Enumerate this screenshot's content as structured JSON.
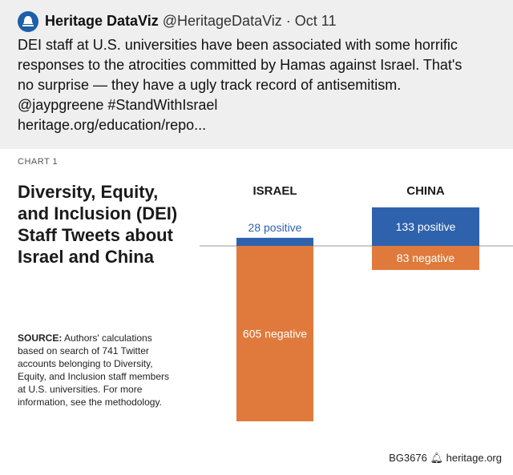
{
  "tweet": {
    "name": "Heritage DataViz",
    "handle": "@HeritageDataViz",
    "separator": "·",
    "date": "Oct 11",
    "lines": [
      "DEI staff at U.S. universities have been associated with some horrific",
      "responses to the atrocities committed by Hamas against Israel. That's",
      "no surprise — they have a ugly track record of antisemitism.",
      "@jaypgreene #StandWithIsrael",
      "heritage.org/education/repo..."
    ]
  },
  "chart_header": {
    "label": "CHART 1",
    "title": "Diversity, Equity, and Inclusion (DEI) Staff Tweets about Israel and China"
  },
  "source": {
    "prefix": "SOURCE:",
    "text": "Authors' calculations based on search of 741 Twitter accounts belonging to Diversity, Equity, and Inclusion staff members at U.S. universities. For more information, see the methodology."
  },
  "footer": {
    "code": "BG3676",
    "site": "heritage.org"
  },
  "colors": {
    "positive": "#2e62ad",
    "negative": "#e07a3c",
    "baseline": "#999999",
    "header_bg": "#efefef"
  },
  "chart_data": {
    "type": "bar",
    "categories": [
      "ISRAEL",
      "CHINA"
    ],
    "series": [
      {
        "name": "positive",
        "values": [
          28,
          133
        ]
      },
      {
        "name": "negative",
        "values": [
          605,
          83
        ]
      }
    ],
    "data_labels": [
      [
        "28 positive",
        "133 positive"
      ],
      [
        "605 negative",
        "83 negative"
      ]
    ],
    "title": "Diversity, Equity, and Inclusion (DEI) Staff Tweets about Israel and China",
    "xlabel": "",
    "ylabel": "",
    "grid": false,
    "legend": "none"
  }
}
